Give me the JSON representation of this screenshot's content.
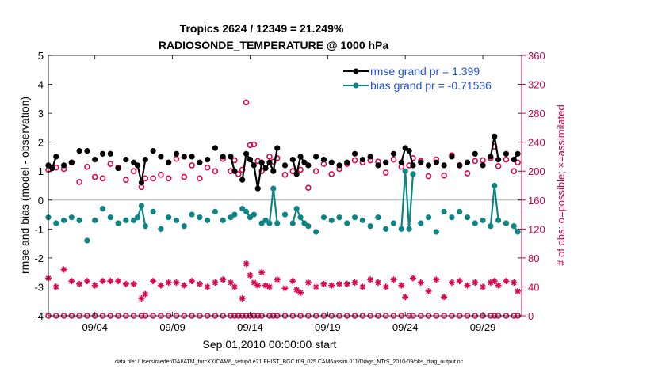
{
  "chart_data": {
    "type": "line",
    "title": "Tropics 2624 / 12349 = 21.249%",
    "subtitle": "RADIOSONDE_TEMPERATURE @ 1000 hPa",
    "xlabel": "Sep.01,2010 00:00:00 start",
    "ylabel": "rmse and bias (model - observation)",
    "ylabel_right": "# of obs: o=possible; ×=assimilated",
    "footnote": "data file: /Users/raeder/DAI/ATM_forcXX/CAM6_setup/f.e21.FHIST_BGC.f09_025.CAM6assim.011/Diags_NTrS_2010-09/obs_diag_output.nc",
    "xlim": [
      1,
      31.5
    ],
    "ylim": [
      -4,
      5
    ],
    "ylim_right": [
      0,
      360
    ],
    "yticks": [
      "-4",
      "-3",
      "-2",
      "-1",
      "0",
      "1",
      "2",
      "3",
      "4",
      "5"
    ],
    "yticks_right": [
      "0",
      "40",
      "80",
      "120",
      "160",
      "200",
      "240",
      "280",
      "320",
      "360"
    ],
    "xticks": [
      {
        "day": 4,
        "label": "09/04"
      },
      {
        "day": 9,
        "label": "09/09"
      },
      {
        "day": 14,
        "label": "09/14"
      },
      {
        "day": 19,
        "label": "09/19"
      },
      {
        "day": 24,
        "label": "09/24"
      },
      {
        "day": 29,
        "label": "09/29"
      }
    ],
    "legend": {
      "position": "top-right",
      "entries": [
        "rmse grand pr = 1.399",
        "bias grand pr = -0.71536"
      ]
    },
    "colors": {
      "rmse": "#000000",
      "bias": "#0f8484",
      "obs": "#d6084f",
      "zero": "#bfbfbf",
      "axis": "#000000",
      "axis_right": "#c8004b"
    },
    "series": [
      {
        "name": "rmse",
        "points": [
          [
            1.0,
            1.2
          ],
          [
            1.25,
            1.1
          ],
          [
            1.5,
            1.5
          ],
          [
            2.0,
            1.2
          ],
          [
            2.5,
            1.3
          ],
          [
            3.0,
            1.7
          ],
          [
            3.5,
            1.7
          ],
          [
            4.0,
            1.4
          ],
          [
            4.5,
            1.6
          ],
          [
            5.0,
            1.6
          ],
          [
            5.5,
            1.1
          ],
          [
            6.0,
            1.4
          ],
          [
            6.5,
            1.3
          ],
          [
            6.75,
            1.2
          ],
          [
            7.0,
            0.6
          ],
          [
            7.25,
            1.4
          ],
          [
            7.75,
            1.7
          ],
          [
            8.25,
            1.5
          ],
          [
            8.75,
            1.3
          ],
          [
            9.25,
            1.6
          ],
          [
            9.75,
            1.5
          ],
          [
            10.25,
            1.5
          ],
          [
            10.75,
            1.3
          ],
          [
            11.25,
            1.4
          ],
          [
            11.75,
            1.8
          ],
          [
            12.25,
            1.5
          ],
          [
            12.75,
            1.5
          ],
          [
            13.0,
            1.0
          ],
          [
            13.5,
            0.7
          ],
          [
            13.75,
            1.6
          ],
          [
            14.0,
            1.4
          ],
          [
            14.25,
            1.2
          ],
          [
            14.5,
            0.4
          ],
          [
            14.75,
            1.3
          ],
          [
            15.0,
            1.1
          ],
          [
            15.25,
            1.3
          ],
          [
            15.5,
            1.0
          ],
          [
            15.75,
            1.8
          ],
          [
            16.25,
            1.2
          ],
          [
            16.75,
            1.4
          ],
          [
            17.0,
            0.9
          ],
          [
            17.25,
            1.5
          ],
          [
            17.5,
            1.3
          ],
          [
            17.75,
            1.2
          ],
          [
            18.25,
            1.5
          ],
          [
            18.75,
            1.4
          ],
          [
            19.25,
            1.3
          ],
          [
            19.75,
            1.2
          ],
          [
            20.25,
            1.3
          ],
          [
            20.75,
            1.6
          ],
          [
            21.25,
            1.4
          ],
          [
            21.75,
            1.5
          ],
          [
            22.25,
            1.2
          ],
          [
            22.75,
            1.3
          ],
          [
            23.25,
            1.6
          ],
          [
            23.75,
            1.3
          ],
          [
            24.0,
            1.8
          ],
          [
            24.25,
            1.7
          ],
          [
            24.5,
            1.2
          ],
          [
            25.0,
            1.3
          ],
          [
            25.5,
            1.2
          ],
          [
            26.0,
            1.3
          ],
          [
            26.5,
            1.2
          ],
          [
            27.0,
            1.5
          ],
          [
            27.5,
            1.2
          ],
          [
            28.0,
            1.3
          ],
          [
            28.5,
            1.6
          ],
          [
            29.0,
            1.2
          ],
          [
            29.5,
            1.5
          ],
          [
            29.75,
            2.2
          ],
          [
            30.0,
            1.4
          ],
          [
            30.5,
            1.6
          ],
          [
            31.0,
            1.4
          ],
          [
            31.25,
            1.6
          ]
        ]
      },
      {
        "name": "bias",
        "points": [
          [
            1.0,
            -0.6
          ],
          [
            1.5,
            -0.8
          ],
          [
            2.0,
            -0.7
          ],
          [
            2.5,
            -0.6
          ],
          [
            3.0,
            -0.7
          ],
          [
            3.5,
            -1.4
          ],
          [
            4.0,
            -0.7
          ],
          [
            4.5,
            -0.3
          ],
          [
            5.0,
            -0.6
          ],
          [
            5.5,
            -0.8
          ],
          [
            6.0,
            -0.7
          ],
          [
            6.5,
            -0.7
          ],
          [
            6.75,
            -0.6
          ],
          [
            7.0,
            -0.2
          ],
          [
            7.25,
            -0.9
          ],
          [
            7.75,
            -0.4
          ],
          [
            8.25,
            -1.0
          ],
          [
            8.75,
            -0.6
          ],
          [
            9.25,
            -0.7
          ],
          [
            9.75,
            -0.9
          ],
          [
            10.25,
            -0.5
          ],
          [
            10.75,
            -0.6
          ],
          [
            11.25,
            -0.7
          ],
          [
            11.75,
            -0.4
          ],
          [
            12.25,
            -0.7
          ],
          [
            12.75,
            -0.6
          ],
          [
            13.0,
            -0.5
          ],
          [
            13.5,
            -0.3
          ],
          [
            13.75,
            -0.4
          ],
          [
            14.0,
            -0.6
          ],
          [
            14.25,
            -0.5
          ],
          [
            14.75,
            -0.8
          ],
          [
            15.0,
            -0.7
          ],
          [
            15.25,
            -0.8
          ],
          [
            15.5,
            0.4
          ],
          [
            15.75,
            -0.8
          ],
          [
            16.25,
            -0.5
          ],
          [
            16.75,
            -0.8
          ],
          [
            17.0,
            -0.3
          ],
          [
            17.25,
            -0.6
          ],
          [
            17.5,
            -0.8
          ],
          [
            17.75,
            -0.9
          ],
          [
            18.25,
            -1.1
          ],
          [
            18.75,
            -0.6
          ],
          [
            19.25,
            -0.7
          ],
          [
            19.75,
            -0.6
          ],
          [
            20.25,
            -0.8
          ],
          [
            20.75,
            -0.6
          ],
          [
            21.25,
            -0.7
          ],
          [
            21.75,
            -0.9
          ],
          [
            22.25,
            -0.6
          ],
          [
            22.75,
            -1.0
          ],
          [
            23.25,
            -0.8
          ],
          [
            23.75,
            -1.0
          ],
          [
            24.0,
            1.0
          ],
          [
            24.25,
            -1.0
          ],
          [
            24.5,
            0.9
          ],
          [
            25.0,
            -0.8
          ],
          [
            25.5,
            -0.6
          ],
          [
            26.0,
            -1.1
          ],
          [
            26.5,
            -0.4
          ],
          [
            27.0,
            -0.6
          ],
          [
            27.5,
            -0.4
          ],
          [
            28.0,
            -0.6
          ],
          [
            28.5,
            -0.8
          ],
          [
            29.0,
            -0.7
          ],
          [
            29.5,
            -0.9
          ],
          [
            29.75,
            0.5
          ],
          [
            30.0,
            -0.7
          ],
          [
            30.5,
            -0.8
          ],
          [
            31.0,
            -0.9
          ],
          [
            31.25,
            -1.1
          ]
        ]
      },
      {
        "name": "obs_possible",
        "points": [
          [
            1.0,
            202
          ],
          [
            1.5,
            205
          ],
          [
            2.0,
            203
          ],
          [
            2.5,
            212
          ],
          [
            3.0,
            185
          ],
          [
            3.5,
            206
          ],
          [
            4.0,
            192
          ],
          [
            4.5,
            190
          ],
          [
            5.0,
            210
          ],
          [
            5.5,
            205
          ],
          [
            6.0,
            188
          ],
          [
            6.5,
            200
          ],
          [
            7.0,
            178
          ],
          [
            7.25,
            190
          ],
          [
            7.75,
            190
          ],
          [
            8.25,
            195
          ],
          [
            8.75,
            190
          ],
          [
            9.25,
            217
          ],
          [
            9.75,
            192
          ],
          [
            10.25,
            208
          ],
          [
            10.75,
            190
          ],
          [
            11.25,
            205
          ],
          [
            11.75,
            200
          ],
          [
            12.25,
            217
          ],
          [
            12.75,
            200
          ],
          [
            13.0,
            215
          ],
          [
            13.25,
            196
          ],
          [
            13.5,
            202
          ],
          [
            13.75,
            295
          ],
          [
            14.0,
            236
          ],
          [
            14.25,
            237
          ],
          [
            14.5,
            214
          ],
          [
            14.75,
            200
          ],
          [
            15.25,
            220
          ],
          [
            15.5,
            213
          ],
          [
            15.75,
            218
          ],
          [
            16.25,
            195
          ],
          [
            16.75,
            200
          ],
          [
            17.25,
            202
          ],
          [
            17.75,
            177
          ],
          [
            18.25,
            200
          ],
          [
            18.75,
            210
          ],
          [
            19.25,
            196
          ],
          [
            19.75,
            203
          ],
          [
            20.25,
            210
          ],
          [
            20.75,
            215
          ],
          [
            21.25,
            212
          ],
          [
            21.75,
            215
          ],
          [
            22.25,
            213
          ],
          [
            22.75,
            198
          ],
          [
            23.25,
            216
          ],
          [
            23.75,
            206
          ],
          [
            24.25,
            208
          ],
          [
            24.5,
            218
          ],
          [
            25.0,
            214
          ],
          [
            25.5,
            193
          ],
          [
            26.0,
            216
          ],
          [
            26.5,
            194
          ],
          [
            27.0,
            222
          ],
          [
            27.5,
            208
          ],
          [
            28.0,
            197
          ],
          [
            28.5,
            214
          ],
          [
            29.0,
            215
          ],
          [
            29.5,
            218
          ],
          [
            29.75,
            234
          ],
          [
            30.0,
            207
          ],
          [
            30.5,
            216
          ],
          [
            31.0,
            200
          ],
          [
            31.25,
            212
          ]
        ]
      },
      {
        "name": "obs_assimilated",
        "points": [
          [
            1.0,
            52
          ],
          [
            1.5,
            40
          ],
          [
            2.0,
            64
          ],
          [
            2.5,
            48
          ],
          [
            3.0,
            44
          ],
          [
            3.5,
            48
          ],
          [
            4.0,
            42
          ],
          [
            4.5,
            48
          ],
          [
            5.0,
            48
          ],
          [
            5.5,
            48
          ],
          [
            6.0,
            44
          ],
          [
            6.5,
            44
          ],
          [
            7.0,
            24
          ],
          [
            7.25,
            30
          ],
          [
            7.75,
            48
          ],
          [
            8.25,
            42
          ],
          [
            8.75,
            46
          ],
          [
            9.25,
            46
          ],
          [
            9.75,
            42
          ],
          [
            10.25,
            48
          ],
          [
            10.75,
            44
          ],
          [
            11.25,
            40
          ],
          [
            11.75,
            46
          ],
          [
            12.25,
            50
          ],
          [
            12.75,
            46
          ],
          [
            13.0,
            40
          ],
          [
            13.5,
            24
          ],
          [
            13.75,
            72
          ],
          [
            14.0,
            56
          ],
          [
            14.25,
            46
          ],
          [
            14.5,
            42
          ],
          [
            14.75,
            60
          ],
          [
            15.0,
            42
          ],
          [
            15.25,
            40
          ],
          [
            15.75,
            50
          ],
          [
            16.25,
            38
          ],
          [
            16.75,
            48
          ],
          [
            17.0,
            36
          ],
          [
            17.25,
            32
          ],
          [
            17.75,
            46
          ],
          [
            18.25,
            40
          ],
          [
            18.75,
            44
          ],
          [
            19.25,
            42
          ],
          [
            19.75,
            44
          ],
          [
            20.25,
            44
          ],
          [
            20.75,
            46
          ],
          [
            21.25,
            40
          ],
          [
            21.75,
            50
          ],
          [
            22.25,
            46
          ],
          [
            22.75,
            40
          ],
          [
            23.25,
            50
          ],
          [
            23.75,
            42
          ],
          [
            24.0,
            26
          ],
          [
            24.5,
            52
          ],
          [
            25.0,
            46
          ],
          [
            25.5,
            34
          ],
          [
            26.0,
            50
          ],
          [
            26.5,
            26
          ],
          [
            27.0,
            46
          ],
          [
            27.5,
            48
          ],
          [
            28.0,
            42
          ],
          [
            28.5,
            46
          ],
          [
            29.0,
            40
          ],
          [
            29.5,
            46
          ],
          [
            29.75,
            48
          ],
          [
            30.0,
            42
          ],
          [
            30.5,
            48
          ],
          [
            31.0,
            46
          ],
          [
            31.25,
            34
          ]
        ]
      }
    ]
  }
}
